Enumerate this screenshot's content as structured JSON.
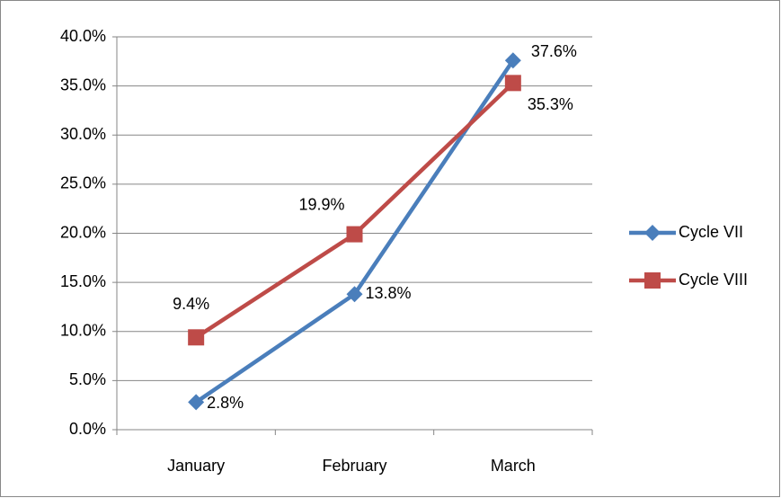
{
  "chart_data": {
    "type": "line",
    "categories": [
      "January",
      "February",
      "March"
    ],
    "series": [
      {
        "name": "Cycle VII",
        "color": "#4a7ebb",
        "marker": "diamond",
        "values": [
          2.8,
          13.8,
          37.6
        ],
        "value_labels": [
          "2.8%",
          "13.8%",
          "37.6%"
        ]
      },
      {
        "name": "Cycle VIII",
        "color": "#be4b48",
        "marker": "square",
        "values": [
          9.4,
          19.9,
          35.3
        ],
        "value_labels": [
          "9.4%",
          "19.9%",
          "35.3%"
        ]
      }
    ],
    "ylim": [
      0,
      40
    ],
    "yticks": [
      {
        "value": 0,
        "label": "0.0%"
      },
      {
        "value": 5,
        "label": "5.0%"
      },
      {
        "value": 10,
        "label": "10.0%"
      },
      {
        "value": 15,
        "label": "15.0%"
      },
      {
        "value": 20,
        "label": "20.0%"
      },
      {
        "value": 25,
        "label": "25.0%"
      },
      {
        "value": 30,
        "label": "30.0%"
      },
      {
        "value": 35,
        "label": "35.0%"
      },
      {
        "value": 40,
        "label": "40.0%"
      }
    ],
    "grid": true,
    "legend": "right"
  }
}
